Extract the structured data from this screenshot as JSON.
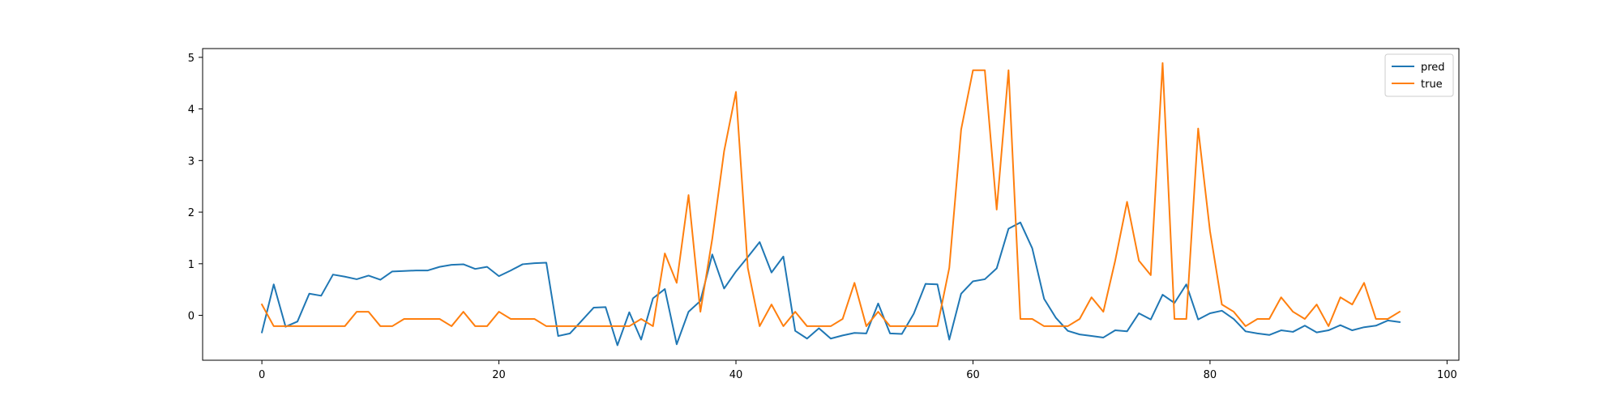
{
  "chart_data": {
    "type": "line",
    "title": "",
    "xlabel": "",
    "ylabel": "",
    "xlim": [
      -5,
      101
    ],
    "ylim": [
      -0.87,
      5.17
    ],
    "xticks": [
      0,
      20,
      40,
      60,
      80,
      100
    ],
    "yticks": [
      0,
      1,
      2,
      3,
      4,
      5
    ],
    "xtick_labels": [
      "0",
      "20",
      "40",
      "60",
      "80",
      "100"
    ],
    "ytick_labels": [
      "0",
      "1",
      "2",
      "3",
      "4",
      "5"
    ],
    "grid": false,
    "legend": "top-right",
    "series": [
      {
        "name": "pred",
        "color": "#1f77b4",
        "x": [
          0,
          1,
          2,
          3,
          4,
          5,
          6,
          7,
          8,
          9,
          10,
          11,
          12,
          13,
          14,
          15,
          16,
          17,
          18,
          19,
          20,
          21,
          22,
          23,
          24,
          25,
          26,
          27,
          28,
          29,
          30,
          31,
          32,
          33,
          34,
          35,
          36,
          37,
          38,
          39,
          40,
          41,
          42,
          43,
          44,
          45,
          46,
          47,
          48,
          49,
          50,
          51,
          52,
          53,
          54,
          55,
          56,
          57,
          58,
          59,
          60,
          61,
          62,
          63,
          64,
          65,
          66,
          67,
          68,
          69,
          70,
          71,
          72,
          73,
          74,
          75,
          76,
          77,
          78,
          79,
          80,
          81,
          82,
          83,
          84,
          85,
          86,
          87,
          88,
          89,
          90,
          91,
          92,
          93,
          94,
          95,
          96
        ],
        "values": [
          -0.33,
          0.6,
          -0.22,
          -0.12,
          0.42,
          0.38,
          0.79,
          0.75,
          0.7,
          0.77,
          0.69,
          0.85,
          0.86,
          0.87,
          0.87,
          0.94,
          0.98,
          0.99,
          0.9,
          0.94,
          0.76,
          0.87,
          0.99,
          1.01,
          1.02,
          -0.4,
          -0.35,
          -0.1,
          0.15,
          0.16,
          -0.58,
          0.06,
          -0.47,
          0.33,
          0.51,
          -0.56,
          0.07,
          0.28,
          1.18,
          0.52,
          0.85,
          1.13,
          1.42,
          0.83,
          1.14,
          -0.3,
          -0.45,
          -0.25,
          -0.45,
          -0.39,
          -0.34,
          -0.35,
          0.23,
          -0.35,
          -0.36,
          0.03,
          0.61,
          0.6,
          -0.47,
          0.42,
          0.66,
          0.7,
          0.91,
          1.68,
          1.8,
          1.3,
          0.32,
          -0.05,
          -0.3,
          -0.37,
          -0.4,
          -0.43,
          -0.29,
          -0.31,
          0.04,
          -0.08,
          0.4,
          0.24,
          0.6,
          -0.08,
          0.04,
          0.09,
          -0.07,
          -0.31,
          -0.35,
          -0.38,
          -0.29,
          -0.32,
          -0.2,
          -0.33,
          -0.29,
          -0.19,
          -0.29,
          -0.23,
          -0.2,
          -0.1,
          -0.13
        ]
      },
      {
        "name": "true",
        "color": "#ff7f0e",
        "x": [
          0,
          1,
          2,
          3,
          4,
          5,
          6,
          7,
          8,
          9,
          10,
          11,
          12,
          13,
          14,
          15,
          16,
          17,
          18,
          19,
          20,
          21,
          22,
          23,
          24,
          25,
          26,
          27,
          28,
          29,
          30,
          31,
          32,
          33,
          34,
          35,
          36,
          37,
          38,
          39,
          40,
          41,
          42,
          43,
          44,
          45,
          46,
          47,
          48,
          49,
          50,
          51,
          52,
          53,
          54,
          55,
          56,
          57,
          58,
          59,
          60,
          61,
          62,
          63,
          64,
          65,
          66,
          67,
          68,
          69,
          70,
          71,
          72,
          73,
          74,
          75,
          76,
          77,
          78,
          79,
          80,
          81,
          82,
          83,
          84,
          85,
          86,
          87,
          88,
          89,
          90,
          91,
          92,
          93,
          94,
          95,
          96
        ],
        "values": [
          0.21,
          -0.21,
          -0.21,
          -0.21,
          -0.21,
          -0.21,
          -0.21,
          -0.21,
          0.07,
          0.07,
          -0.21,
          -0.21,
          -0.07,
          -0.07,
          -0.07,
          -0.07,
          -0.21,
          0.07,
          -0.21,
          -0.21,
          0.07,
          -0.07,
          -0.07,
          -0.07,
          -0.21,
          -0.21,
          -0.21,
          -0.21,
          -0.21,
          -0.21,
          -0.21,
          -0.21,
          -0.07,
          -0.21,
          1.2,
          0.63,
          2.33,
          0.07,
          1.48,
          3.18,
          4.33,
          0.92,
          -0.21,
          0.21,
          -0.21,
          0.07,
          -0.21,
          -0.21,
          -0.21,
          -0.07,
          0.63,
          -0.21,
          0.07,
          -0.21,
          -0.21,
          -0.21,
          -0.21,
          -0.21,
          0.92,
          3.6,
          4.75,
          4.75,
          2.05,
          4.75,
          -0.07,
          -0.07,
          -0.21,
          -0.21,
          -0.21,
          -0.07,
          0.35,
          0.07,
          1.06,
          2.2,
          1.06,
          0.78,
          4.89,
          -0.07,
          -0.07,
          3.62,
          1.63,
          0.21,
          0.07,
          -0.21,
          -0.07,
          -0.07,
          0.35,
          0.07,
          -0.07,
          0.21,
          -0.21,
          0.35,
          0.21,
          0.63,
          -0.07,
          -0.07,
          0.07
        ]
      }
    ]
  }
}
